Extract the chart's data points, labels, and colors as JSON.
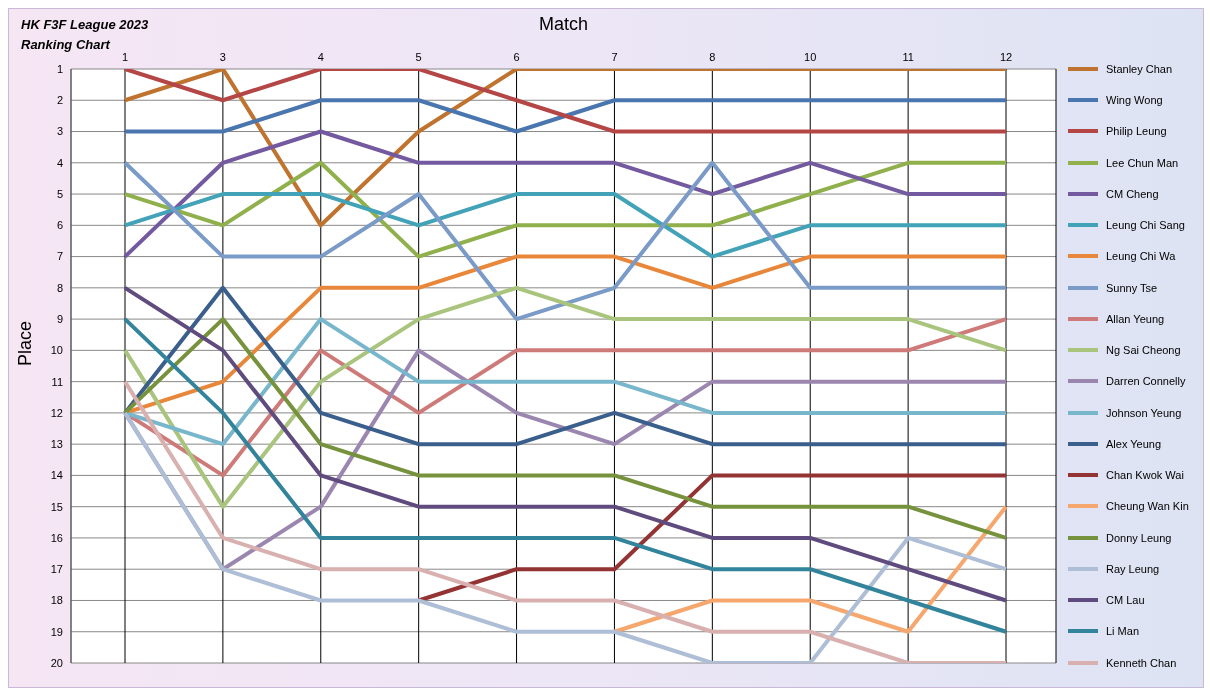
{
  "chart_data": {
    "type": "line",
    "title": "HK F3F League 2023",
    "subtitle": "Ranking Chart",
    "xlabel": "Match",
    "ylabel": "Place",
    "categories": [
      "1",
      "3",
      "4",
      "5",
      "6",
      "7",
      "8",
      "10",
      "11",
      "12"
    ],
    "ylim": [
      20,
      1
    ],
    "yticks": [
      1,
      2,
      3,
      4,
      5,
      6,
      7,
      8,
      9,
      10,
      11,
      12,
      13,
      14,
      15,
      16,
      17,
      18,
      19,
      20
    ],
    "grid": true,
    "legend": "right",
    "marker": "none",
    "line_style": "solid",
    "series": [
      {
        "name": "Stanley Chan",
        "color": "#c0732f",
        "values": [
          2,
          1,
          6,
          3,
          1,
          1,
          1,
          1,
          1,
          1
        ]
      },
      {
        "name": "Wing Wong",
        "color": "#4a76b0",
        "values": [
          3,
          3,
          2,
          2,
          3,
          2,
          2,
          2,
          2,
          2
        ]
      },
      {
        "name": "Philip Leung",
        "color": "#b54646",
        "values": [
          1,
          2,
          1,
          1,
          2,
          3,
          3,
          3,
          3,
          3
        ]
      },
      {
        "name": "Lee Chun Man",
        "color": "#8fb04b",
        "values": [
          5,
          6,
          4,
          7,
          6,
          6,
          6,
          5,
          4,
          4
        ]
      },
      {
        "name": "CM Cheng",
        "color": "#7359a0",
        "values": [
          7,
          4,
          3,
          4,
          4,
          4,
          5,
          4,
          5,
          5
        ]
      },
      {
        "name": "Leung Chi Sang",
        "color": "#42a2b8",
        "values": [
          6,
          5,
          5,
          6,
          5,
          5,
          7,
          6,
          6,
          6
        ]
      },
      {
        "name": "Leung Chi Wa",
        "color": "#e8873a",
        "values": [
          12,
          11,
          8,
          8,
          7,
          7,
          8,
          7,
          7,
          7
        ]
      },
      {
        "name": "Sunny Tse",
        "color": "#7a9ac8",
        "values": [
          4,
          7,
          7,
          5,
          9,
          8,
          4,
          8,
          8,
          8
        ]
      },
      {
        "name": "Allan Yeung",
        "color": "#cd7a78",
        "values": [
          12,
          14,
          10,
          12,
          10,
          10,
          10,
          10,
          10,
          9
        ]
      },
      {
        "name": "Ng Sai Cheong",
        "color": "#a9c47d",
        "values": [
          10,
          15,
          11,
          9,
          8,
          9,
          9,
          9,
          9,
          10
        ]
      },
      {
        "name": "Darren Connelly",
        "color": "#9b86b0",
        "values": [
          12,
          17,
          15,
          10,
          12,
          13,
          11,
          11,
          11,
          11
        ]
      },
      {
        "name": "Johnson Yeung",
        "color": "#78b6cc",
        "values": [
          12,
          13,
          9,
          11,
          11,
          11,
          12,
          12,
          12,
          12
        ]
      },
      {
        "name": "Alex Yeung",
        "color": "#3a5f8c",
        "values": [
          12,
          8,
          12,
          13,
          13,
          12,
          13,
          13,
          13,
          13
        ]
      },
      {
        "name": "Chan Kwok Wai",
        "color": "#933333",
        "values": [
          null,
          null,
          null,
          18,
          17,
          17,
          14,
          14,
          14,
          14
        ]
      },
      {
        "name": "Cheung Wan Kin",
        "color": "#f6a76e",
        "values": [
          null,
          null,
          null,
          null,
          null,
          19,
          18,
          18,
          19,
          15
        ]
      },
      {
        "name": "Donny Leung",
        "color": "#76923c",
        "values": [
          12,
          9,
          13,
          14,
          14,
          14,
          15,
          15,
          15,
          16
        ]
      },
      {
        "name": "Ray Leung",
        "color": "#adbed6",
        "values": [
          12,
          17,
          18,
          18,
          19,
          19,
          20,
          20,
          16,
          17
        ]
      },
      {
        "name": "CM Lau",
        "color": "#5f4b7e",
        "values": [
          8,
          10,
          14,
          15,
          15,
          15,
          16,
          16,
          17,
          18
        ]
      },
      {
        "name": "Li Man",
        "color": "#31849b",
        "values": [
          9,
          12,
          16,
          16,
          16,
          16,
          17,
          17,
          18,
          19
        ]
      },
      {
        "name": "Kenneth Chan",
        "color": "#d9b0b0",
        "values": [
          11,
          16,
          17,
          17,
          18,
          18,
          19,
          19,
          20,
          20
        ]
      }
    ]
  }
}
